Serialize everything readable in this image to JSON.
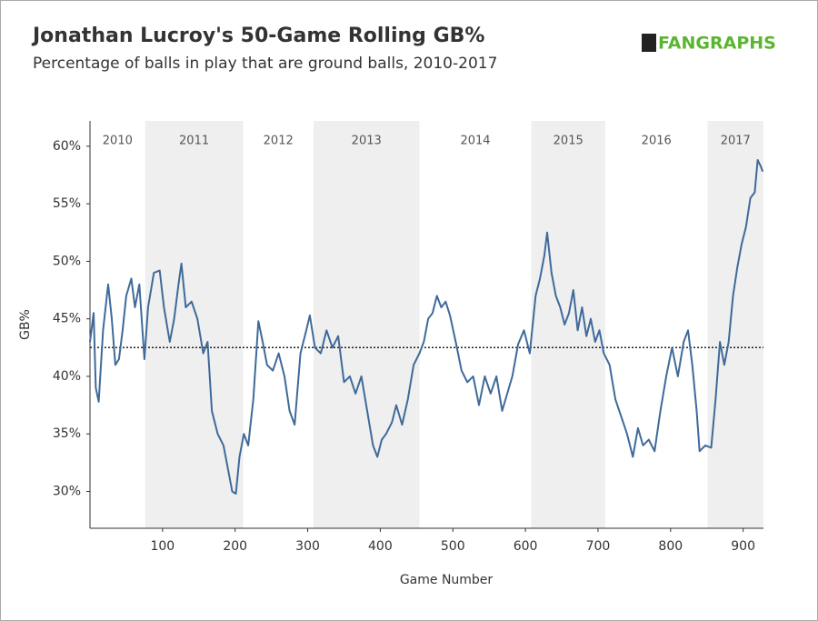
{
  "chart_data": {
    "type": "line",
    "title": "Jonathan Lucroy's 50-Game Rolling GB%",
    "subtitle": "Percentage of balls in play that are ground balls, 2010-2017",
    "logo": "FANGRAPHS",
    "x_label": "Game Number",
    "y_label": "GB%",
    "color": "#3f6a9a",
    "xlim": [
      0,
      928
    ],
    "ylim": [
      26.8,
      62.2
    ],
    "xticks": [
      100,
      200,
      300,
      400,
      500,
      600,
      700,
      800,
      900
    ],
    "yticks": [
      {
        "value": 30,
        "label": "30%"
      },
      {
        "value": 35,
        "label": "35%"
      },
      {
        "value": 40,
        "label": "40%"
      },
      {
        "value": 45,
        "label": "45%"
      },
      {
        "value": 50,
        "label": "50%"
      },
      {
        "value": 55,
        "label": "55%"
      },
      {
        "value": 60,
        "label": "60%"
      }
    ],
    "reference_line": 42.5,
    "seasons": [
      {
        "label": "2010",
        "start": 0,
        "end": 76,
        "shaded": false
      },
      {
        "label": "2011",
        "start": 76,
        "end": 211,
        "shaded": true
      },
      {
        "label": "2012",
        "start": 211,
        "end": 308,
        "shaded": false
      },
      {
        "label": "2013",
        "start": 308,
        "end": 454,
        "shaded": true
      },
      {
        "label": "2014",
        "start": 454,
        "end": 608,
        "shaded": false
      },
      {
        "label": "2015",
        "start": 608,
        "end": 710,
        "shaded": true
      },
      {
        "label": "2016",
        "start": 710,
        "end": 851,
        "shaded": false
      },
      {
        "label": "2017",
        "start": 851,
        "end": 928,
        "shaded": true
      }
    ],
    "x": [
      0,
      5,
      8,
      12,
      18,
      25,
      30,
      35,
      40,
      45,
      50,
      57,
      62,
      68,
      75,
      80,
      88,
      96,
      102,
      110,
      116,
      122,
      126,
      132,
      140,
      148,
      156,
      162,
      168,
      176,
      184,
      190,
      196,
      201,
      206,
      212,
      218,
      225,
      232,
      238,
      244,
      252,
      260,
      268,
      275,
      282,
      290,
      298,
      303,
      310,
      318,
      326,
      334,
      342,
      350,
      358,
      366,
      374,
      382,
      390,
      396,
      402,
      408,
      416,
      422,
      430,
      438,
      446,
      454,
      460,
      466,
      472,
      478,
      484,
      490,
      496,
      504,
      512,
      520,
      528,
      536,
      544,
      552,
      560,
      568,
      575,
      582,
      590,
      598,
      606,
      614,
      620,
      626,
      630,
      636,
      642,
      648,
      654,
      660,
      666,
      672,
      678,
      684,
      690,
      696,
      702,
      708,
      716,
      724,
      732,
      740,
      748,
      755,
      762,
      770,
      778,
      786,
      794,
      802,
      810,
      818,
      824,
      830,
      836,
      840,
      848,
      856,
      862,
      868,
      874,
      880,
      886,
      892,
      898,
      904,
      910,
      916,
      920,
      924,
      927
    ],
    "values": [
      43,
      45.5,
      39,
      37.8,
      44,
      48,
      45,
      41,
      41.5,
      44,
      47,
      48.5,
      46,
      48,
      41.5,
      46,
      49,
      49.2,
      46,
      43,
      45,
      48,
      49.8,
      46,
      46.5,
      45,
      42,
      43,
      37,
      35,
      34,
      32,
      30,
      29.8,
      33,
      35,
      34,
      38,
      44.8,
      43,
      41,
      40.5,
      42,
      40,
      37,
      35.8,
      42,
      44,
      45.3,
      42.5,
      42,
      44,
      42.5,
      43.5,
      39.5,
      40,
      38.5,
      40,
      37,
      34,
      33,
      34.5,
      35,
      36,
      37.5,
      35.8,
      38,
      41,
      42,
      43,
      45,
      45.5,
      47,
      46,
      46.5,
      45.3,
      43,
      40.5,
      39.5,
      40,
      37.5,
      40,
      38.5,
      40,
      37,
      38.5,
      40,
      42.8,
      44,
      42,
      47,
      48.5,
      50.5,
      52.5,
      49,
      47,
      46,
      44.5,
      45.5,
      47.5,
      44,
      46,
      43.5,
      45,
      43,
      44,
      42,
      41,
      38,
      36.5,
      35,
      33,
      35.5,
      34,
      34.5,
      33.5,
      37,
      40,
      42.5,
      40,
      43,
      44,
      41,
      37,
      33.5,
      34,
      33.8,
      38,
      43,
      41,
      43,
      47,
      49.5,
      51.5,
      53,
      55.5,
      56,
      58.8,
      58.3,
      57.8
    ]
  }
}
